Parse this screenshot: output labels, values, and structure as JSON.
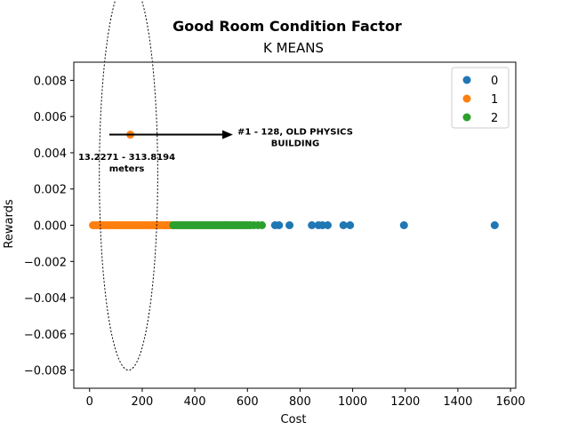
{
  "chart_data": {
    "type": "scatter",
    "title": "Good Room Condition Factor",
    "subtitle": "K MEANS",
    "xlabel": "Cost",
    "ylabel": "Rewards",
    "xlim": [
      -60,
      1620
    ],
    "ylim": [
      -0.009,
      0.009
    ],
    "x_ticks": [
      0,
      200,
      400,
      600,
      800,
      1000,
      1200,
      1400,
      1600
    ],
    "x_tick_labels": [
      "0",
      "200",
      "400",
      "600",
      "800",
      "1000",
      "1200",
      "1400",
      "1600"
    ],
    "y_ticks": [
      0.008,
      0.006,
      0.004,
      0.002,
      0.0,
      -0.002,
      -0.004,
      -0.006,
      -0.008
    ],
    "y_tick_labels": [
      "0.008",
      "0.006",
      "0.004",
      "0.002",
      "0.000",
      "−0.002",
      "−0.004",
      "−0.006",
      "−0.008"
    ],
    "grid": false,
    "legend_position": "top-right",
    "series": [
      {
        "name": "0",
        "color": "#1f77b4",
        "x": [
          705,
          720,
          760,
          845,
          870,
          885,
          905,
          965,
          990,
          1195,
          1540
        ],
        "y": [
          0,
          0,
          0,
          0,
          0,
          0,
          0,
          0,
          0,
          0,
          0
        ]
      },
      {
        "name": "1",
        "color": "#ff7f0e",
        "x": [
          13,
          20,
          28,
          35,
          42,
          50,
          58,
          65,
          72,
          80,
          88,
          95,
          102,
          110,
          118,
          125,
          132,
          140,
          148,
          155,
          162,
          170,
          178,
          185,
          192,
          200,
          208,
          215,
          222,
          230,
          238,
          245,
          252,
          260,
          268,
          275,
          282,
          290,
          298,
          305,
          310,
          155
        ],
        "y": [
          0,
          0,
          0,
          0,
          0,
          0,
          0,
          0,
          0,
          0,
          0,
          0,
          0,
          0,
          0,
          0,
          0,
          0,
          0,
          0,
          0,
          0,
          0,
          0,
          0,
          0,
          0,
          0,
          0,
          0,
          0,
          0,
          0,
          0,
          0,
          0,
          0,
          0,
          0,
          0,
          0,
          0.005
        ]
      },
      {
        "name": "2",
        "color": "#2ca02c",
        "x": [
          318,
          325,
          333,
          340,
          348,
          355,
          363,
          370,
          378,
          385,
          393,
          400,
          408,
          415,
          423,
          430,
          438,
          445,
          453,
          460,
          468,
          475,
          483,
          490,
          498,
          505,
          513,
          520,
          528,
          535,
          543,
          550,
          558,
          565,
          573,
          580,
          588,
          595,
          603,
          612,
          625,
          640,
          655
        ],
        "y": [
          0,
          0,
          0,
          0,
          0,
          0,
          0,
          0,
          0,
          0,
          0,
          0,
          0,
          0,
          0,
          0,
          0,
          0,
          0,
          0,
          0,
          0,
          0,
          0,
          0,
          0,
          0,
          0,
          0,
          0,
          0,
          0,
          0,
          0,
          0,
          0,
          0,
          0,
          0,
          0,
          0,
          0,
          0
        ]
      }
    ],
    "annotations": {
      "ellipse_label_line1": "13.2271 - 313.8194",
      "ellipse_label_line2": "meters",
      "arrow_label_line1": "#1 - 128, OLD PHYSICS",
      "arrow_label_line2": "BUILDING",
      "arrow_from": [
        200,
        0.005
      ],
      "arrow_to": [
        545,
        0.005
      ],
      "ellipse_center": [
        148,
        0.0028
      ],
      "ellipse_radius": [
        222,
        0.0045
      ]
    }
  }
}
